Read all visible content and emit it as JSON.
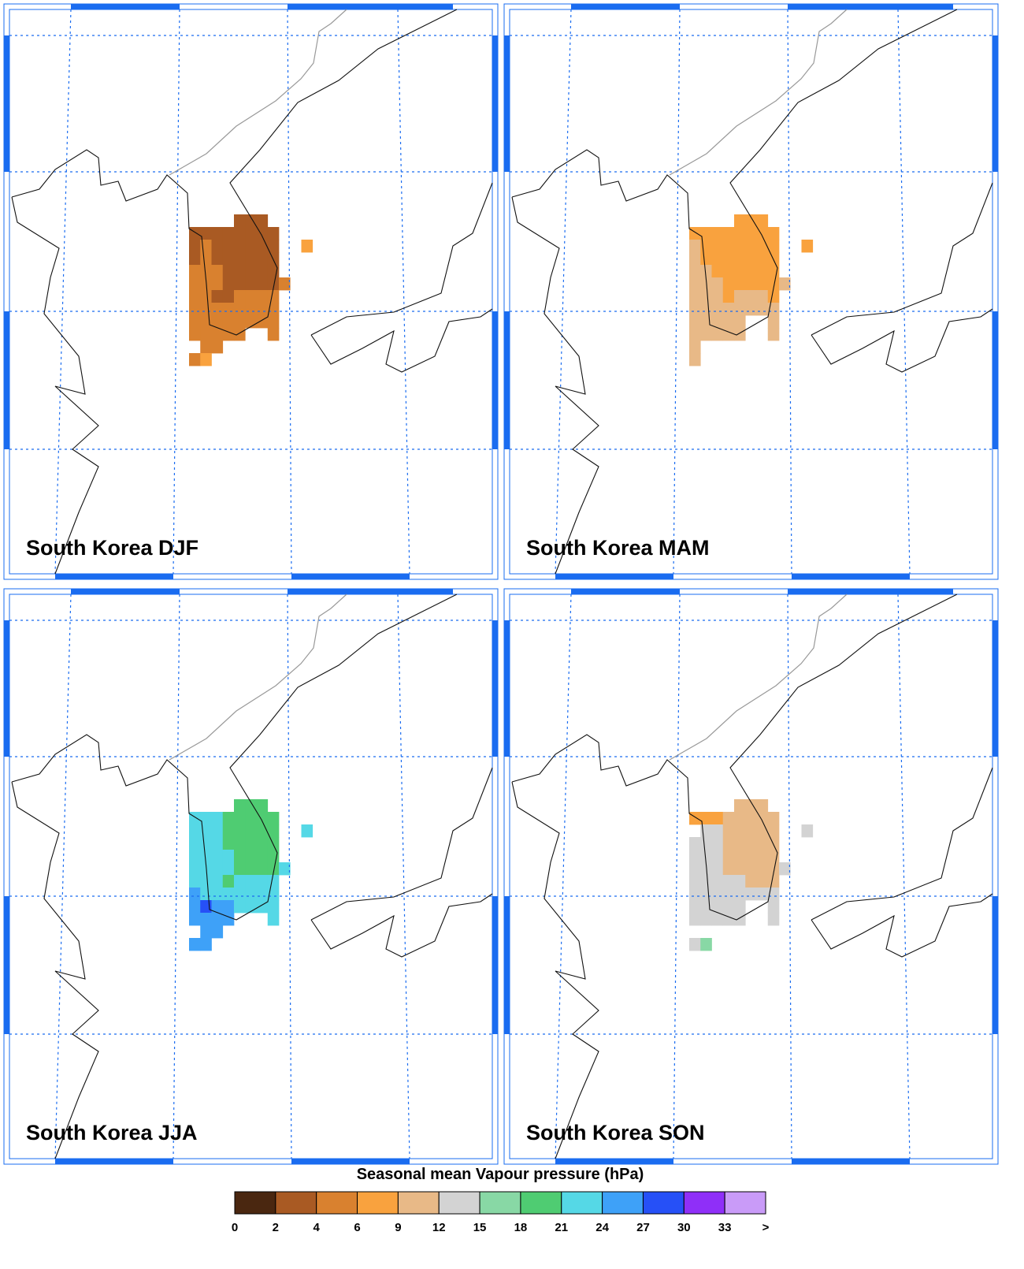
{
  "panels": [
    {
      "title": "South Korea DJF",
      "cells": [
        [
          null,
          null,
          null,
          null,
          3,
          3,
          3,
          null,
          null,
          null,
          null
        ],
        [
          3,
          3,
          3,
          3,
          3,
          3,
          3,
          3,
          null,
          null,
          null
        ],
        [
          3,
          5,
          3,
          3,
          3,
          3,
          3,
          3,
          null,
          null,
          7
        ],
        [
          3,
          5,
          3,
          3,
          3,
          3,
          3,
          3,
          null,
          null,
          null
        ],
        [
          5,
          5,
          5,
          3,
          3,
          3,
          3,
          3,
          null,
          null,
          null
        ],
        [
          5,
          5,
          5,
          3,
          3,
          3,
          3,
          3,
          5,
          null,
          null
        ],
        [
          5,
          5,
          3,
          3,
          5,
          5,
          5,
          5,
          null,
          null,
          null
        ],
        [
          5,
          5,
          5,
          5,
          5,
          5,
          5,
          5,
          null,
          null,
          null
        ],
        [
          5,
          5,
          5,
          5,
          5,
          5,
          5,
          5,
          null,
          null,
          null
        ],
        [
          5,
          5,
          5,
          5,
          5,
          null,
          null,
          5,
          null,
          null,
          null
        ],
        [
          null,
          5,
          5,
          null,
          null,
          null,
          null,
          null,
          null,
          null,
          null
        ],
        [
          5,
          7,
          null,
          null,
          null,
          null,
          null,
          null,
          null,
          null,
          null
        ]
      ]
    },
    {
      "title": "South Korea MAM",
      "cells": [
        [
          null,
          null,
          null,
          null,
          7,
          7,
          7,
          null,
          null,
          null,
          null
        ],
        [
          7,
          7,
          7,
          7,
          7,
          7,
          7,
          7,
          null,
          null,
          null
        ],
        [
          10.5,
          7,
          7,
          7,
          7,
          7,
          7,
          7,
          null,
          null,
          7
        ],
        [
          10.5,
          7,
          7,
          7,
          7,
          7,
          7,
          7,
          null,
          null,
          null
        ],
        [
          10.5,
          10.5,
          7,
          7,
          7,
          7,
          7,
          7,
          null,
          null,
          null
        ],
        [
          10.5,
          10.5,
          10.5,
          7,
          7,
          7,
          7,
          7,
          10.5,
          null,
          null
        ],
        [
          10.5,
          10.5,
          10.5,
          7,
          10.5,
          10.5,
          10.5,
          7,
          null,
          null,
          null
        ],
        [
          10.5,
          10.5,
          10.5,
          10.5,
          10.5,
          10.5,
          10.5,
          10.5,
          null,
          null,
          null
        ],
        [
          10.5,
          10.5,
          10.5,
          10.5,
          10.5,
          null,
          null,
          10.5,
          null,
          null,
          null
        ],
        [
          10.5,
          10.5,
          10.5,
          10.5,
          10.5,
          null,
          null,
          10.5,
          null,
          null,
          null
        ],
        [
          10.5,
          null,
          null,
          null,
          null,
          null,
          null,
          null,
          null,
          null,
          null
        ],
        [
          10.5,
          null,
          null,
          null,
          null,
          null,
          null,
          null,
          null,
          null,
          null
        ]
      ]
    },
    {
      "title": "South Korea JJA",
      "cells": [
        [
          null,
          null,
          null,
          null,
          19.5,
          19.5,
          19.5,
          null,
          null,
          null,
          null
        ],
        [
          22.5,
          22.5,
          22.5,
          19.5,
          19.5,
          19.5,
          19.5,
          19.5,
          null,
          null,
          null
        ],
        [
          22.5,
          22.5,
          22.5,
          19.5,
          19.5,
          19.5,
          19.5,
          19.5,
          null,
          null,
          22.5
        ],
        [
          22.5,
          22.5,
          22.5,
          19.5,
          19.5,
          19.5,
          19.5,
          19.5,
          null,
          null,
          null
        ],
        [
          22.5,
          22.5,
          22.5,
          22.5,
          19.5,
          19.5,
          19.5,
          19.5,
          null,
          null,
          null
        ],
        [
          22.5,
          22.5,
          22.5,
          22.5,
          19.5,
          19.5,
          19.5,
          19.5,
          22.5,
          null,
          null
        ],
        [
          22.5,
          22.5,
          22.5,
          19.5,
          22.5,
          22.5,
          22.5,
          22.5,
          null,
          null,
          null
        ],
        [
          25.5,
          22.5,
          22.5,
          22.5,
          22.5,
          22.5,
          22.5,
          22.5,
          null,
          null,
          null
        ],
        [
          25.5,
          28.5,
          25.5,
          25.5,
          22.5,
          22.5,
          22.5,
          22.5,
          null,
          null,
          null
        ],
        [
          25.5,
          25.5,
          25.5,
          25.5,
          null,
          null,
          null,
          22.5,
          null,
          null,
          null
        ],
        [
          null,
          25.5,
          25.5,
          null,
          null,
          null,
          null,
          null,
          null,
          null,
          null
        ],
        [
          25.5,
          25.5,
          null,
          null,
          null,
          null,
          null,
          null,
          null,
          null,
          null
        ]
      ]
    },
    {
      "title": "South Korea SON",
      "cells": [
        [
          null,
          null,
          null,
          null,
          10.5,
          10.5,
          10.5,
          null,
          null,
          null,
          null
        ],
        [
          7,
          7,
          7,
          10.5,
          10.5,
          10.5,
          10.5,
          10.5,
          null,
          null,
          null
        ],
        [
          null,
          13.5,
          13.5,
          10.5,
          10.5,
          10.5,
          10.5,
          10.5,
          null,
          null,
          13.5
        ],
        [
          13.5,
          13.5,
          13.5,
          10.5,
          10.5,
          10.5,
          10.5,
          10.5,
          null,
          null,
          null
        ],
        [
          13.5,
          13.5,
          13.5,
          10.5,
          10.5,
          10.5,
          10.5,
          10.5,
          null,
          null,
          null
        ],
        [
          13.5,
          13.5,
          13.5,
          10.5,
          10.5,
          10.5,
          10.5,
          10.5,
          13.5,
          null,
          null
        ],
        [
          13.5,
          13.5,
          13.5,
          13.5,
          13.5,
          10.5,
          10.5,
          10.5,
          null,
          null,
          null
        ],
        [
          13.5,
          13.5,
          13.5,
          13.5,
          13.5,
          13.5,
          13.5,
          13.5,
          null,
          null,
          null
        ],
        [
          13.5,
          13.5,
          13.5,
          13.5,
          13.5,
          null,
          null,
          13.5,
          null,
          null,
          null
        ],
        [
          13.5,
          13.5,
          13.5,
          13.5,
          13.5,
          null,
          null,
          13.5,
          null,
          null,
          null
        ],
        [
          null,
          null,
          null,
          null,
          null,
          null,
          null,
          null,
          null,
          null,
          null
        ],
        [
          13.5,
          16.5,
          null,
          null,
          null,
          null,
          null,
          null,
          null,
          null,
          null
        ]
      ]
    }
  ],
  "colorbar": {
    "title": "Seasonal mean Vapour pressure (hPa)",
    "labels": [
      0,
      2,
      4,
      6,
      9,
      12,
      15,
      18,
      21,
      24,
      27,
      30,
      33,
      ">"
    ],
    "colors": [
      "#4a2710",
      "#a95a23",
      "#d9812f",
      "#f9a23e",
      "#e8b987",
      "#d3d3d3",
      "#88d8a5",
      "#4fcc72",
      "#55d8e6",
      "#3ea1f8",
      "#2650f7",
      "#8f2ff8",
      "#c99bf8"
    ]
  }
}
